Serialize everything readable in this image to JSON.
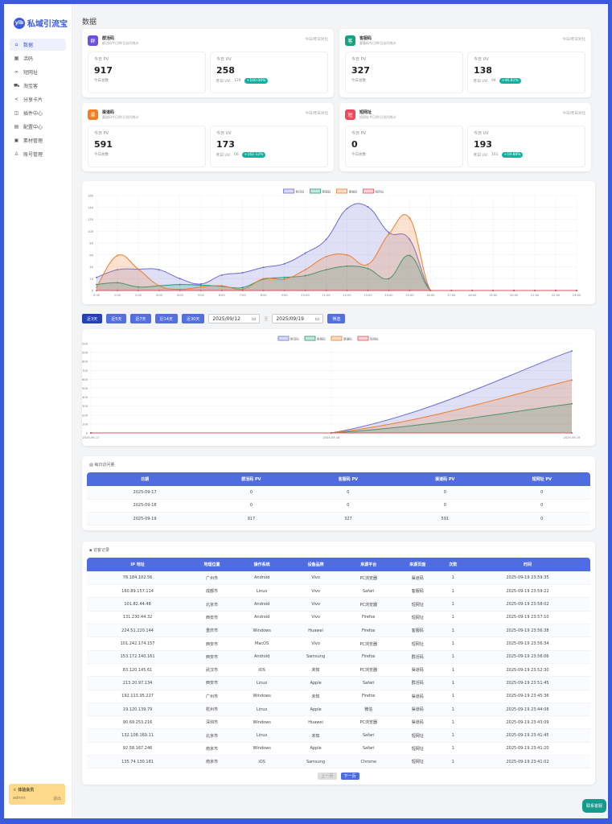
{
  "app": {
    "logo_mark": "ylb",
    "name": "私域引流宝"
  },
  "sidebar": {
    "items": [
      {
        "label": "数据",
        "icon": "home-icon"
      },
      {
        "label": "活码",
        "icon": "qrcode-icon"
      },
      {
        "label": "短网址",
        "icon": "link-icon"
      },
      {
        "label": "淘宝客",
        "icon": "cart-icon"
      },
      {
        "label": "分享卡片",
        "icon": "share-icon"
      },
      {
        "label": "插件中心",
        "icon": "plugin-icon"
      },
      {
        "label": "配置中心",
        "icon": "config-icon"
      },
      {
        "label": "素材管理",
        "icon": "material-icon"
      },
      {
        "label": "账号管理",
        "icon": "user-icon"
      }
    ],
    "member": {
      "title": "体验会员",
      "user": "admin",
      "logout": "退出"
    }
  },
  "page_title": "数据",
  "stats": [
    {
      "icon_char": "群",
      "color": "#6a4fe0",
      "name": "群活码",
      "sub": "群活码今日/昨日访问统计",
      "compare": "今日/昨日对比",
      "pv_label": "今日 PV",
      "pv": "917",
      "pv_foot": "今日总数",
      "uv_label": "今日 UV",
      "uv": "258",
      "yuv_label": "昨日 UV:",
      "yuv": "129",
      "change": "+100.00%"
    },
    {
      "icon_char": "客",
      "color": "#14a37f",
      "name": "客服码",
      "sub": "客服码今日/昨日访问统计",
      "compare": "今日/昨日对比",
      "pv_label": "今日 PV",
      "pv": "327",
      "pv_foot": "今日总数",
      "uv_label": "今日 UV",
      "uv": "138",
      "yuv_label": "昨日 UV:",
      "yuv": "94",
      "change": "+46.81%"
    },
    {
      "icon_char": "渠",
      "color": "#f07f22",
      "name": "渠道码",
      "sub": "渠道码今日/昨日访问统计",
      "compare": "今日/昨日对比",
      "pv_label": "今日 PV",
      "pv": "591",
      "pv_foot": "今日总数",
      "uv_label": "今日 UV",
      "uv": "173",
      "yuv_label": "昨日 UV:",
      "yuv": "66",
      "change": "+162.12%"
    },
    {
      "icon_char": "短",
      "color": "#ec4a5c",
      "name": "短网址",
      "sub": "短网址今日/昨日访问统计",
      "compare": "今日/昨日对比",
      "pv_label": "今日 PV",
      "pv": "0",
      "pv_foot": "今日总数",
      "uv_label": "今日 UV",
      "uv": "193",
      "yuv_label": "昨日 UV:",
      "yuv": "161",
      "change": "+19.88%"
    }
  ],
  "filters": {
    "ranges": [
      "近3天",
      "近5天",
      "近7天",
      "近14天",
      "近30天"
    ],
    "active": "近3天",
    "start": "2025/09/12",
    "to": "至",
    "end": "2025/09/19",
    "submit": "筛选"
  },
  "chart_data": [
    {
      "type": "area",
      "x": [
        "0:00",
        "1:00",
        "2:00",
        "3:00",
        "4:00",
        "5:00",
        "6:00",
        "7:00",
        "8:00",
        "9:00",
        "10:00",
        "11:00",
        "12:00",
        "13:00",
        "14:00",
        "15:00",
        "16:00",
        "17:00",
        "18:00",
        "19:00",
        "20:00",
        "21:00",
        "22:00",
        "23:00"
      ],
      "ylim": [
        0,
        160
      ],
      "yticks": [
        0,
        20,
        40,
        60,
        80,
        100,
        120,
        140,
        160
      ],
      "grid": true,
      "legend": "top",
      "series": [
        {
          "name": "群活码",
          "color": "#6c6cd8",
          "values": [
            22,
            35,
            36,
            35,
            20,
            11,
            26,
            30,
            39,
            45,
            63,
            86,
            138,
            141,
            98,
            86,
            0,
            0,
            0,
            0,
            0,
            0,
            0,
            0
          ]
        },
        {
          "name": "客服码",
          "color": "#1f9b78",
          "values": [
            10,
            13,
            6,
            8,
            10,
            9,
            7,
            5,
            19,
            22,
            25,
            35,
            41,
            37,
            20,
            59,
            0,
            0,
            0,
            0,
            0,
            0,
            0,
            0
          ]
        },
        {
          "name": "渠道码",
          "color": "#ee7d2c",
          "values": [
            5,
            59,
            36,
            8,
            2,
            6,
            8,
            2,
            20,
            19,
            35,
            57,
            60,
            44,
            95,
            122,
            0,
            0,
            0,
            0,
            0,
            0,
            0,
            0
          ]
        },
        {
          "name": "短网址",
          "color": "#e05060",
          "values": [
            0,
            0,
            0,
            0,
            0,
            0,
            0,
            0,
            0,
            0,
            0,
            0,
            0,
            0,
            0,
            0,
            0,
            0,
            0,
            0,
            0,
            0,
            0,
            0
          ]
        }
      ]
    },
    {
      "type": "area",
      "x": [
        "2025-09-17",
        "2025-09-18",
        "2025-09-19"
      ],
      "ylim": [
        0,
        1000
      ],
      "yticks": [
        0,
        100,
        200,
        300,
        400,
        500,
        600,
        700,
        800,
        900,
        1000
      ],
      "grid": true,
      "legend": "top",
      "series": [
        {
          "name": "群活码",
          "color": "#6c6cd8",
          "values": [
            0,
            0,
            917
          ]
        },
        {
          "name": "客服码",
          "color": "#1f9b78",
          "values": [
            0,
            0,
            327
          ]
        },
        {
          "name": "渠道码",
          "color": "#ee7d2c",
          "values": [
            0,
            0,
            591
          ]
        },
        {
          "name": "短网址",
          "color": "#e05060",
          "values": [
            0,
            0,
            0
          ]
        }
      ]
    }
  ],
  "daily": {
    "title": "每日访问量",
    "headers": [
      "日期",
      "群活码 PV",
      "客服码 PV",
      "渠道码 PV",
      "短网址 PV"
    ],
    "rows": [
      [
        "2025-09-17",
        "0",
        "0",
        "0",
        "0"
      ],
      [
        "2025-09-18",
        "0",
        "0",
        "0",
        "0"
      ],
      [
        "2025-09-19",
        "917",
        "327",
        "591",
        "0"
      ]
    ]
  },
  "visits": {
    "title": "访客记录",
    "headers": [
      "IP 地址",
      "地理位置",
      "操作系统",
      "设备品牌",
      "来源平台",
      "来源页面",
      "次数",
      "时间"
    ],
    "rows": [
      [
        "78.184.102.56",
        "广州市",
        "Android",
        "Vivo",
        "PC浏览器",
        "渠道码",
        "1",
        "2025-09-19 23:59:35"
      ],
      [
        "160.89.157.114",
        "成都市",
        "Linux",
        "Vivo",
        "Safari",
        "客服码",
        "1",
        "2025-09-19 23:59:22"
      ],
      [
        "101.82.44.48",
        "北京市",
        "Android",
        "Vivo",
        "PC浏览器",
        "短网址",
        "1",
        "2025-09-19 23:58:02"
      ],
      [
        "131.230.44.32",
        "西安市",
        "Android",
        "Vivo",
        "Firefox",
        "短网址",
        "1",
        "2025-09-19 23:57:10"
      ],
      [
        "224.51.220.144",
        "重庆市",
        "Windows",
        "Huawei",
        "Firefox",
        "客服码",
        "1",
        "2025-09-19 23:56:38"
      ],
      [
        "101.242.174.157",
        "西安市",
        "MacOS",
        "Vivo",
        "PC浏览器",
        "短网址",
        "1",
        "2025-09-19 23:56:34"
      ],
      [
        "153.172.140.161",
        "西安市",
        "Android",
        "Samsung",
        "Firefox",
        "群活码",
        "1",
        "2025-09-19 23:56:06"
      ],
      [
        "83.120.145.61",
        "武汉市",
        "iOS",
        "未知",
        "PC浏览器",
        "渠道码",
        "1",
        "2025-09-19 23:52:30"
      ],
      [
        "213.20.97.134",
        "西安市",
        "Linux",
        "Apple",
        "Safari",
        "群活码",
        "1",
        "2025-09-19 23:51:45"
      ],
      [
        "192.113.95.227",
        "广州市",
        "Windows",
        "未知",
        "Firefox",
        "渠道码",
        "1",
        "2025-09-19 23:45:36"
      ],
      [
        "19.120.139.79",
        "杭州市",
        "Linux",
        "Apple",
        "微信",
        "渠道码",
        "1",
        "2025-09-19 23:44:08"
      ],
      [
        "90.69.253.216",
        "深圳市",
        "Windows",
        "Huawei",
        "PC浏览器",
        "渠道码",
        "1",
        "2025-09-19 23:43:09"
      ],
      [
        "132.108.169.11",
        "北京市",
        "Linux",
        "未知",
        "Safari",
        "短网址",
        "1",
        "2025-09-19 23:41:45"
      ],
      [
        "92.58.167.246",
        "南京市",
        "Windows",
        "Apple",
        "Safari",
        "短网址",
        "1",
        "2025-09-19 23:41:20"
      ],
      [
        "135.74.130.181",
        "南京市",
        "iOS",
        "Samsung",
        "Chrome",
        "短网址",
        "1",
        "2025-09-19 23:41:02"
      ]
    ]
  },
  "pager": {
    "prev": "上一页",
    "next": "下一页"
  },
  "service": "联系客服"
}
